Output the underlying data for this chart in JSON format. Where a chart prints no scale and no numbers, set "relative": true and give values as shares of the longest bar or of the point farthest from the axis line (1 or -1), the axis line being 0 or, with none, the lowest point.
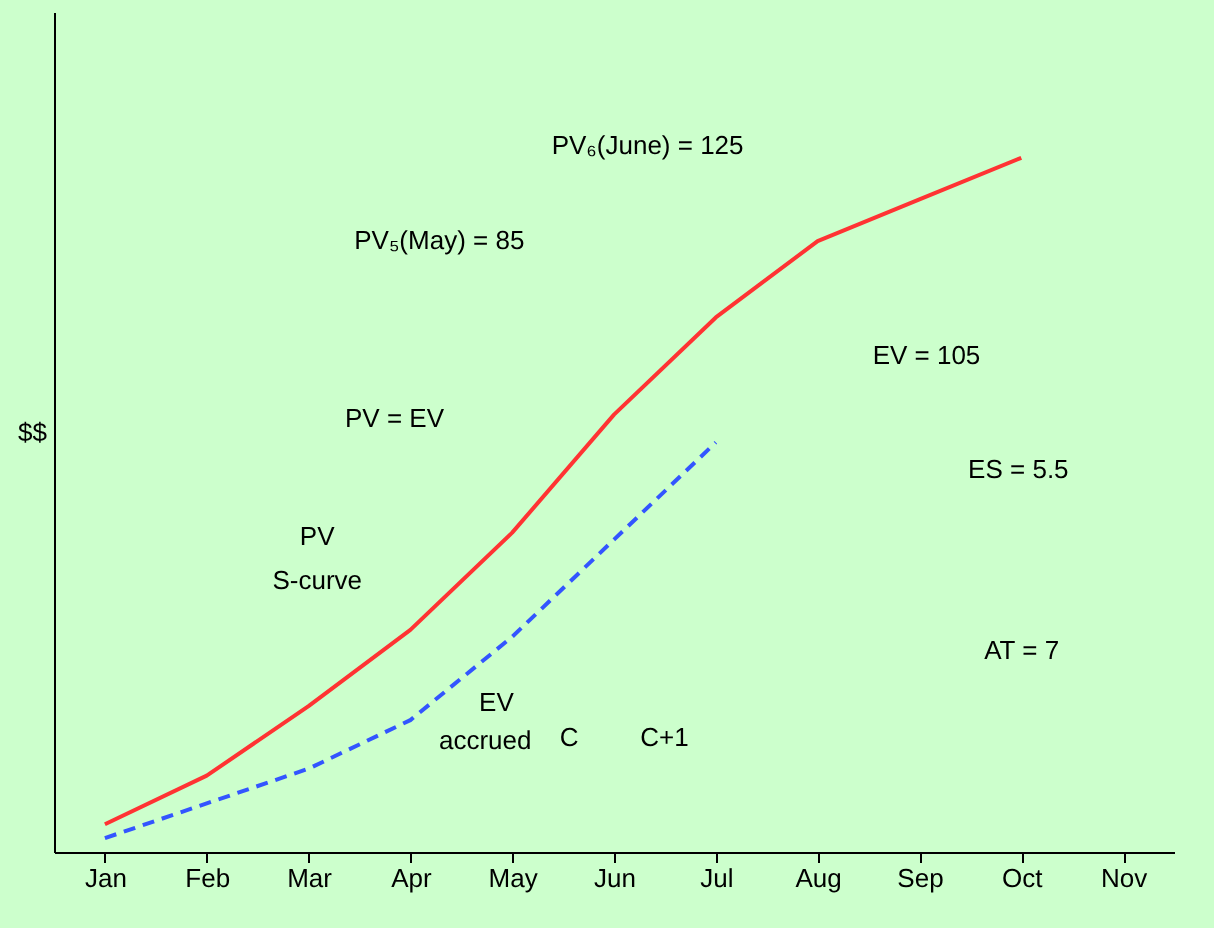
{
  "chart_data": {
    "type": "line",
    "ylabel": "$$",
    "relative": true,
    "tick_labels": "x",
    "categories": [
      "Jan",
      "Feb",
      "Mar",
      "Apr",
      "May",
      "Jun",
      "Jul",
      "Aug",
      "Sep",
      "Oct",
      "Nov"
    ],
    "series": [
      {
        "color": "#ff3333",
        "line_style": "solid",
        "values": [
          0.04,
          0.11,
          0.21,
          0.32,
          0.46,
          0.63,
          0.77,
          0.88,
          0.94,
          1,
          null
        ]
      },
      {
        "color": "#3355ff",
        "line_style": "dashed",
        "values": [
          0.02,
          0.07,
          0.12,
          0.19,
          0.31,
          0.45,
          0.59,
          null,
          null,
          null,
          null
        ]
      }
    ],
    "annotations": [
      "PV₆(June) = 125",
      "PV₅(May) = 85",
      "PV = EV",
      "EV = 105",
      "ES = 5.5",
      "AT = 7",
      "PV",
      "S-curve",
      "EV",
      "accrued",
      "C",
      "C+1"
    ]
  }
}
